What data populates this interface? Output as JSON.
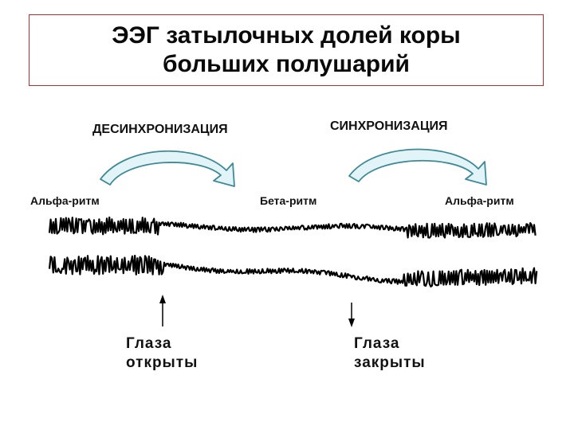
{
  "title": {
    "line1": "ЭЭГ затылочных долей коры",
    "line2": "больших полушарий"
  },
  "phases": {
    "desync": "ДЕСИНХРОНИЗАЦИЯ",
    "sync": "СИНХРОНИЗАЦИЯ"
  },
  "rhythms": {
    "left": "Альфа-ритм",
    "middle": "Бета-ритм",
    "right": "Альфа-ритм"
  },
  "events": {
    "open": {
      "line1": "Глаза",
      "line2": "открыты"
    },
    "closed": {
      "line1": "Глаза",
      "line2": "закрыты"
    }
  },
  "colors": {
    "arrow_fill": "#e2f4f7",
    "arrow_stroke": "#3e8a96",
    "title_border": "#b03030",
    "trace": "#000000"
  }
}
